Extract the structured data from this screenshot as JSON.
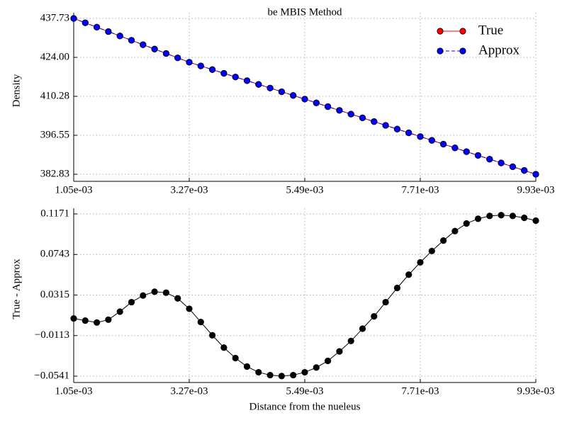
{
  "chart_data": [
    {
      "type": "line",
      "title": "be  MBIS Method",
      "ylabel": "Density",
      "x": [
        0.00105,
        0.001272,
        0.001494,
        0.001716,
        0.001938,
        0.00216,
        0.002382,
        0.002604,
        0.002826,
        0.003048,
        0.00327,
        0.003492,
        0.003714,
        0.003936,
        0.004158,
        0.00438,
        0.004602,
        0.004824,
        0.005046,
        0.005268,
        0.00549,
        0.005712,
        0.005934,
        0.006156,
        0.006378,
        0.0066,
        0.006822,
        0.007044,
        0.007266,
        0.007488,
        0.00771,
        0.007932,
        0.008154,
        0.008376,
        0.008598,
        0.00882,
        0.009042,
        0.009264,
        0.009486,
        0.009708,
        0.00993
      ],
      "series": [
        {
          "name": "True",
          "color": "#ff0000",
          "linestyle": "solid",
          "values": [
            437.73,
            436.19,
            434.64,
            433.1,
            431.56,
            430.02,
            428.47,
            426.93,
            425.39,
            423.84,
            422.3,
            421.0,
            419.7,
            418.4,
            417.1,
            415.8,
            414.5,
            413.2,
            411.9,
            410.6,
            409.3,
            407.98,
            406.66,
            405.34,
            404.02,
            402.7,
            401.38,
            400.06,
            398.74,
            397.42,
            396.1,
            394.77,
            393.44,
            392.12,
            390.79,
            389.46,
            388.14,
            386.81,
            385.48,
            384.16,
            382.83
          ]
        },
        {
          "name": "Approx",
          "color": "#0000ff",
          "linestyle": "dashed",
          "values": [
            437.73,
            436.19,
            434.64,
            433.1,
            431.56,
            430.02,
            428.47,
            426.93,
            425.39,
            423.84,
            422.3,
            421.0,
            419.7,
            418.4,
            417.1,
            415.8,
            414.5,
            413.2,
            411.9,
            410.6,
            409.3,
            407.98,
            406.66,
            405.34,
            404.02,
            402.7,
            401.38,
            400.06,
            398.74,
            397.42,
            396.1,
            394.77,
            393.44,
            392.12,
            390.79,
            389.46,
            388.14,
            386.81,
            385.48,
            384.16,
            382.83
          ]
        }
      ],
      "xlim": [
        0.00105,
        0.00993
      ],
      "ylim": [
        380.33,
        439.73
      ],
      "xticks": [
        {
          "value": 0.00105,
          "label": "1.05e-03"
        },
        {
          "value": 0.00327,
          "label": "3.27e-03"
        },
        {
          "value": 0.00549,
          "label": "5.49e-03"
        },
        {
          "value": 0.00771,
          "label": "7.71e-03"
        },
        {
          "value": 0.00993,
          "label": "9.93e-03"
        }
      ],
      "yticks": [
        382.83,
        396.55,
        410.28,
        {
          "value": 424,
          "label": "424.00"
        },
        437.73
      ],
      "grid": true,
      "legend": "upper right"
    },
    {
      "type": "line",
      "ylabel": "True - Approx",
      "xlabel": "Distance from the nueleus",
      "color": "#000000",
      "x": [
        0.00105,
        0.001272,
        0.001494,
        0.001716,
        0.001938,
        0.00216,
        0.002382,
        0.002604,
        0.002826,
        0.003048,
        0.00327,
        0.003492,
        0.003714,
        0.003936,
        0.004158,
        0.00438,
        0.004602,
        0.004824,
        0.005046,
        0.005268,
        0.00549,
        0.005712,
        0.005934,
        0.006156,
        0.006378,
        0.0066,
        0.006822,
        0.007044,
        0.007266,
        0.007488,
        0.00771,
        0.007932,
        0.008154,
        0.008376,
        0.008598,
        0.00882,
        0.009042,
        0.009264,
        0.009486,
        0.009708,
        0.00993
      ],
      "values": [
        0.0068,
        0.0045,
        0.0025,
        0.0055,
        0.014,
        0.024,
        0.031,
        0.035,
        0.034,
        0.028,
        0.017,
        0.003,
        -0.011,
        -0.024,
        -0.035,
        -0.044,
        -0.05,
        -0.053,
        -0.054,
        -0.053,
        -0.05,
        -0.045,
        -0.038,
        -0.028,
        -0.017,
        -0.004,
        0.009,
        0.024,
        0.039,
        0.053,
        0.066,
        0.078,
        0.089,
        0.099,
        0.107,
        0.112,
        0.115,
        0.1158,
        0.115,
        0.113,
        0.11
      ],
      "xlim": [
        0.00105,
        0.00993
      ],
      "ylim": [
        -0.0608,
        0.1231
      ],
      "xticks": [
        {
          "value": 0.00105,
          "label": "1.05e-03"
        },
        {
          "value": 0.00327,
          "label": "3.27e-03"
        },
        {
          "value": 0.00549,
          "label": "5.49e-03"
        },
        {
          "value": 0.00771,
          "label": "7.71e-03"
        },
        {
          "value": 0.00993,
          "label": "9.93e-03"
        }
      ],
      "yticks": [
        {
          "value": -0.0541,
          "label": "−0.0541"
        },
        {
          "value": -0.0113,
          "label": "−0.0113"
        },
        0.0315,
        0.0743,
        0.1171
      ],
      "grid": true
    }
  ]
}
